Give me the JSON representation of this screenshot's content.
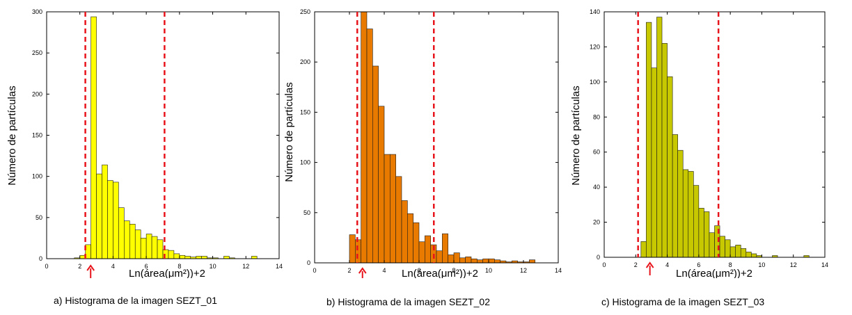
{
  "chart_data": [
    {
      "type": "bar",
      "caption": "a) Histograma de la imagen SEZT_01",
      "xlabel": "Ln(área(μm²))+2",
      "ylabel": "Número de partículas",
      "xlim": [
        0,
        14
      ],
      "ylim": [
        0,
        300
      ],
      "xticks": [
        0,
        2,
        4,
        6,
        8,
        10,
        12,
        14
      ],
      "yticks": [
        0,
        50,
        100,
        150,
        200,
        250,
        300
      ],
      "bar_color": "#FFFF00",
      "bin_width": 0.3333,
      "x": [
        1.167,
        1.5,
        1.833,
        2.167,
        2.5,
        2.833,
        3.167,
        3.5,
        3.833,
        4.167,
        4.5,
        4.833,
        5.167,
        5.5,
        5.833,
        6.167,
        6.5,
        6.833,
        7.167,
        7.5,
        7.833,
        8.167,
        8.5,
        8.833,
        9.167,
        9.5,
        9.833,
        10.167,
        10.5,
        10.833,
        11.167,
        11.5,
        11.833,
        12.167,
        12.5
      ],
      "values": [
        0,
        0,
        1,
        4,
        17,
        294,
        103,
        114,
        95,
        93,
        62,
        46,
        42,
        35,
        25,
        30,
        27,
        23,
        11,
        10,
        6,
        4,
        3,
        2,
        3,
        3,
        1,
        1,
        0,
        3,
        1,
        0,
        0,
        0,
        3
      ],
      "reference_lines_x": [
        2.33,
        7.1
      ],
      "reference_line_color": "#E8141B",
      "arrow_x": 2.65,
      "arrow_color": "#E8141B"
    },
    {
      "type": "bar",
      "caption": "b) Histograma de la imagen SEZT_02",
      "xlabel": "Ln(área(μm²))+2",
      "ylabel": "Número de partículas",
      "xlim": [
        0,
        14
      ],
      "ylim": [
        0,
        250
      ],
      "xticks": [
        0,
        2,
        4,
        6,
        8,
        10,
        12,
        14
      ],
      "yticks": [
        0,
        50,
        100,
        150,
        200,
        250
      ],
      "bar_color": "#E87A00",
      "bin_width": 0.3333,
      "x": [
        2.167,
        2.5,
        2.833,
        3.167,
        3.5,
        3.833,
        4.167,
        4.5,
        4.833,
        5.167,
        5.5,
        5.833,
        6.167,
        6.5,
        6.833,
        7.167,
        7.5,
        7.833,
        8.167,
        8.5,
        8.833,
        9.167,
        9.5,
        9.833,
        10.167,
        10.5,
        10.833,
        11.167,
        11.5,
        11.833,
        12.167,
        12.5
      ],
      "values": [
        28,
        23,
        250,
        233,
        196,
        156,
        108,
        108,
        86,
        62,
        49,
        40,
        21,
        27,
        18,
        12,
        29,
        8,
        10,
        5,
        6,
        4,
        3,
        4,
        4,
        3,
        2,
        1,
        2,
        1,
        1,
        3
      ],
      "reference_lines_x": [
        2.45,
        6.85
      ],
      "reference_line_color": "#E8141B",
      "arrow_x": 2.75,
      "arrow_color": "#E8141B"
    },
    {
      "type": "bar",
      "caption": "c) Histograma de la imagen SEZT_03",
      "xlabel": "Ln(área(μm²))+2",
      "ylabel": "Número de partículas",
      "xlim": [
        0,
        14
      ],
      "ylim": [
        0,
        140
      ],
      "xticks": [
        0,
        2,
        4,
        6,
        8,
        10,
        12,
        14
      ],
      "yticks": [
        0,
        20,
        40,
        60,
        80,
        100,
        120,
        140
      ],
      "bar_color": "#C8C800",
      "bin_width": 0.3333,
      "x": [
        2.5,
        2.833,
        3.167,
        3.5,
        3.833,
        4.167,
        4.5,
        4.833,
        5.167,
        5.5,
        5.833,
        6.167,
        6.5,
        6.833,
        7.167,
        7.5,
        7.833,
        8.167,
        8.5,
        8.833,
        9.167,
        9.5,
        9.833,
        10.167,
        10.5,
        10.833,
        11.167,
        11.5,
        11.833,
        12.167,
        12.5,
        12.833
      ],
      "values": [
        9,
        134,
        108,
        137,
        122,
        103,
        70,
        61,
        50,
        49,
        41,
        28,
        26,
        14,
        18,
        12,
        10,
        6,
        7,
        5,
        3,
        2,
        1,
        0,
        0,
        1,
        0,
        0,
        0,
        0,
        0,
        1
      ],
      "reference_lines_x": [
        2.15,
        7.25
      ],
      "reference_line_color": "#E8141B",
      "arrow_x": 2.9,
      "arrow_color": "#E8141B"
    }
  ]
}
